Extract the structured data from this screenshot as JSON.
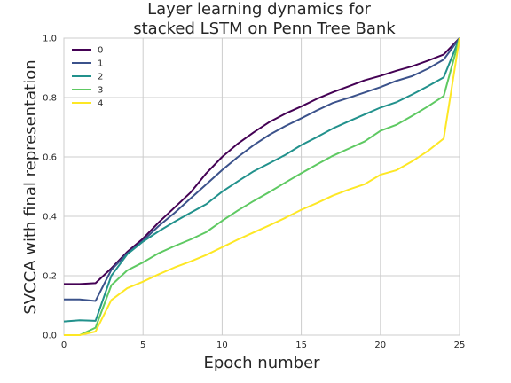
{
  "chart_data": {
    "type": "line",
    "title": [
      "Layer learning dynamics for",
      "stacked LSTM on Penn Tree Bank"
    ],
    "xlabel": "Epoch number",
    "ylabel": "SVCCA with final representation",
    "xlim": [
      0,
      25
    ],
    "ylim": [
      0.0,
      1.0
    ],
    "xticks": [
      0,
      5,
      10,
      15,
      20,
      25
    ],
    "yticks": [
      0.0,
      0.2,
      0.4,
      0.6,
      0.8,
      1.0
    ],
    "xtick_labels": [
      "0",
      "5",
      "10",
      "15",
      "20",
      "25"
    ],
    "ytick_labels": [
      "0.0",
      "0.2",
      "0.4",
      "0.6",
      "0.8",
      "1.0"
    ],
    "grid": true,
    "legend_position": "top-left",
    "x": [
      0,
      1,
      2,
      3,
      4,
      5,
      6,
      7,
      8,
      9,
      10,
      11,
      12,
      13,
      14,
      15,
      16,
      17,
      18,
      19,
      20,
      21,
      22,
      23,
      24,
      25
    ],
    "series": [
      {
        "name": "0",
        "color": "#440154",
        "values": [
          0.172,
          0.172,
          0.175,
          0.225,
          0.28,
          0.325,
          0.38,
          0.43,
          0.48,
          0.545,
          0.6,
          0.645,
          0.683,
          0.718,
          0.746,
          0.77,
          0.796,
          0.818,
          0.838,
          0.858,
          0.873,
          0.89,
          0.905,
          0.924,
          0.945,
          1.0
        ]
      },
      {
        "name": "1",
        "color": "#3b528b",
        "values": [
          0.12,
          0.12,
          0.115,
          0.22,
          0.275,
          0.318,
          0.368,
          0.412,
          0.46,
          0.508,
          0.556,
          0.6,
          0.64,
          0.675,
          0.704,
          0.73,
          0.757,
          0.782,
          0.799,
          0.817,
          0.835,
          0.856,
          0.872,
          0.897,
          0.928,
          1.0
        ]
      },
      {
        "name": "2",
        "color": "#21918c",
        "values": [
          0.046,
          0.05,
          0.048,
          0.2,
          0.272,
          0.315,
          0.35,
          0.382,
          0.412,
          0.441,
          0.483,
          0.518,
          0.552,
          0.579,
          0.607,
          0.64,
          0.667,
          0.696,
          0.72,
          0.743,
          0.766,
          0.784,
          0.81,
          0.838,
          0.868,
          1.0
        ]
      },
      {
        "name": "3",
        "color": "#5ec962",
        "values": [
          0.0,
          0.0,
          0.025,
          0.168,
          0.218,
          0.245,
          0.276,
          0.3,
          0.322,
          0.347,
          0.385,
          0.42,
          0.452,
          0.482,
          0.514,
          0.545,
          0.575,
          0.604,
          0.628,
          0.652,
          0.688,
          0.708,
          0.738,
          0.77,
          0.805,
          1.0
        ]
      },
      {
        "name": "4",
        "color": "#fde725",
        "values": [
          0.0,
          0.0,
          0.012,
          0.118,
          0.158,
          0.18,
          0.205,
          0.228,
          0.248,
          0.27,
          0.296,
          0.322,
          0.346,
          0.37,
          0.395,
          0.422,
          0.445,
          0.47,
          0.49,
          0.508,
          0.54,
          0.555,
          0.585,
          0.62,
          0.662,
          1.0
        ]
      }
    ]
  }
}
